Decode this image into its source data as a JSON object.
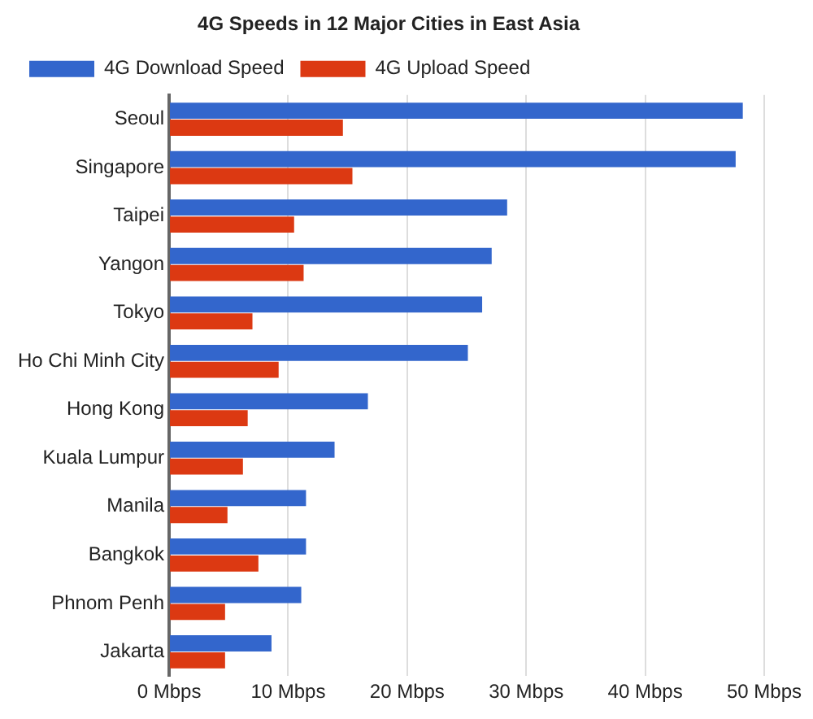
{
  "chart_data": {
    "type": "bar",
    "orientation": "horizontal",
    "title": "4G Speeds in 12 Major Cities in East Asia",
    "categories": [
      "Seoul",
      "Singapore",
      "Taipei",
      "Yangon",
      "Tokyo",
      "Ho Chi Minh City",
      "Hong Kong",
      "Kuala Lumpur",
      "Manila",
      "Bangkok",
      "Phnom Penh",
      "Jakarta"
    ],
    "series": [
      {
        "name": "4G Download Speed",
        "color": "#3366cc",
        "values": [
          48.2,
          47.6,
          28.4,
          27.1,
          26.3,
          25.1,
          16.7,
          13.9,
          11.5,
          11.5,
          11.1,
          8.6
        ]
      },
      {
        "name": "4G Upload Speed",
        "color": "#dc3912",
        "values": [
          14.6,
          15.4,
          10.5,
          11.3,
          7.0,
          9.2,
          6.6,
          6.2,
          4.9,
          7.5,
          4.7,
          4.7
        ]
      }
    ],
    "xlim": [
      0,
      50
    ],
    "xticks": [
      {
        "value": 0,
        "label": "0 Mbps"
      },
      {
        "value": 10,
        "label": "10 Mbps"
      },
      {
        "value": 20,
        "label": "20 Mbps"
      },
      {
        "value": 30,
        "label": "30 Mbps"
      },
      {
        "value": 40,
        "label": "40 Mbps"
      },
      {
        "value": 50,
        "label": "50 Mbps"
      }
    ],
    "grid": "x",
    "legend": "top left"
  }
}
